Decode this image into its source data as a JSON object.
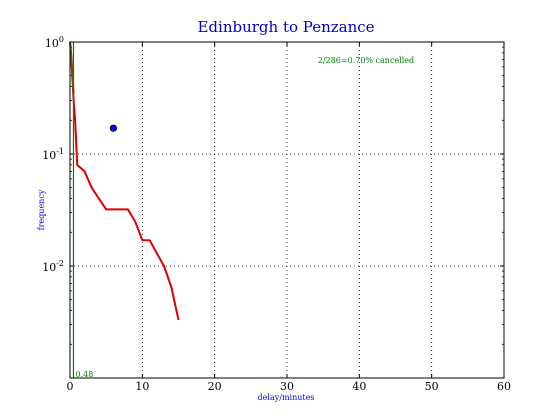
{
  "chart_data": {
    "type": "line",
    "title": "Edinburgh to Penzance",
    "xlabel": "delay/minutes",
    "ylabel": "frequency",
    "xlim": [
      0,
      60
    ],
    "ylim": [
      0.001,
      1
    ],
    "yscale": "log",
    "grid": true,
    "xticks": [
      0,
      10,
      20,
      30,
      40,
      50,
      60
    ],
    "yticks": [
      {
        "value": 1,
        "base": "10",
        "exp": "0"
      },
      {
        "value": 0.1,
        "base": "10",
        "exp": "-1"
      },
      {
        "value": 0.01,
        "base": "10",
        "exp": "-2"
      }
    ],
    "series": [
      {
        "color": "#dd0000",
        "x": [
          0.05,
          0.2,
          0.3,
          0.4,
          0.5,
          0.6,
          0.7,
          0.8,
          1,
          2,
          3,
          4,
          5,
          6,
          7,
          8,
          9,
          10,
          11,
          12,
          13,
          14,
          15
        ],
        "y": [
          0.95,
          0.7,
          0.5,
          0.4,
          0.3,
          0.25,
          0.2,
          0.15,
          0.08,
          0.07,
          0.05,
          0.04,
          0.032,
          0.032,
          0.032,
          0.032,
          0.025,
          0.017,
          0.017,
          0.013,
          0.01,
          0.0065,
          0.0033
        ]
      },
      {
        "color": "#8b4513",
        "x": [
          0,
          0.1,
          0.2,
          0.3,
          0.4,
          0.5
        ],
        "y": [
          1,
          0.85,
          0.7,
          0.55,
          0.45,
          0.35
        ]
      }
    ],
    "vline": {
      "x": 0.48,
      "color": "#008000",
      "label": "0.48"
    },
    "point": {
      "x": 6,
      "y": 0.17,
      "color": "#0000ff"
    },
    "annotation": {
      "text": "2/286=0.70% cancelled",
      "color": "#008000"
    },
    "colors": {
      "title": "#0000cc",
      "axis_label": "#0000ff",
      "annotation": "#008000"
    }
  }
}
